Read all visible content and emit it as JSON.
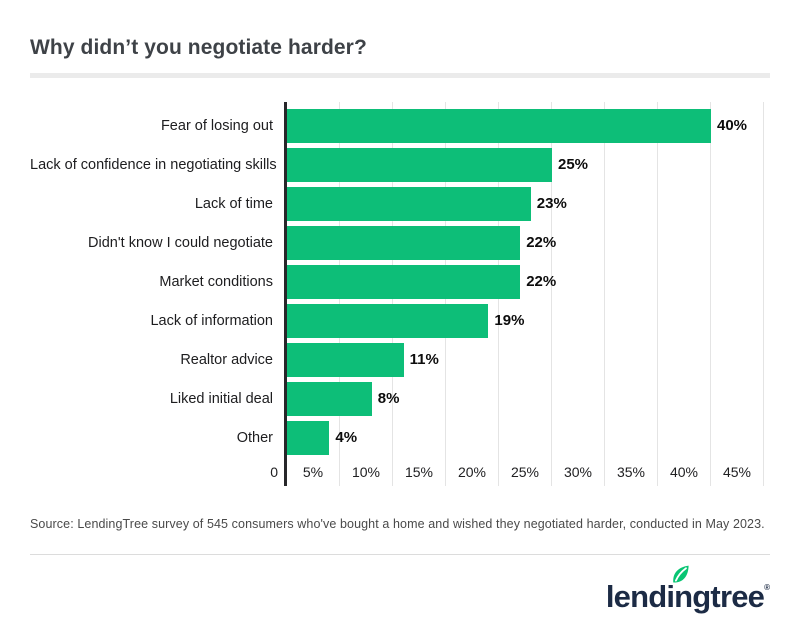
{
  "header": {
    "title": "Why didn’t you negotiate harder?"
  },
  "chart_data": {
    "type": "bar",
    "orientation": "horizontal",
    "title": "Why didn’t you negotiate harder?",
    "categories": [
      "Fear of losing out",
      "Lack of confidence in negotiating skills",
      "Lack of time",
      "Didn't know I could negotiate",
      "Market conditions",
      "Lack of information",
      "Realtor advice",
      "Liked initial deal",
      "Other"
    ],
    "values": [
      40,
      25,
      23,
      22,
      22,
      19,
      11,
      8,
      4
    ],
    "value_labels": [
      "40%",
      "25%",
      "23%",
      "22%",
      "22%",
      "19%",
      "11%",
      "8%",
      "4%"
    ],
    "xlabel": "",
    "ylabel": "",
    "x_axis": {
      "zero_label": "0",
      "tick_labels": [
        "5%",
        "10%",
        "15%",
        "20%",
        "25%",
        "30%",
        "35%",
        "40%",
        "45%"
      ],
      "tick_values": [
        5,
        10,
        15,
        20,
        25,
        30,
        35,
        40,
        45
      ],
      "min": 0,
      "max": 46
    },
    "grid": true,
    "legend_position": "none",
    "bar_color": "#0dbe78",
    "axis_line_color": "#27272a",
    "gridline_color": "#e4e4e4"
  },
  "footer": {
    "source": "Source: LendingTree survey of 545 consumers who've bought a home and wished they negotiated harder, conducted in May 2023.",
    "logo_text": "lendingtree",
    "logo_trademark": "®",
    "logo_color": "#1c2b45",
    "leaf_color": "#08c573",
    "leaf_icon": "leaf-icon"
  }
}
